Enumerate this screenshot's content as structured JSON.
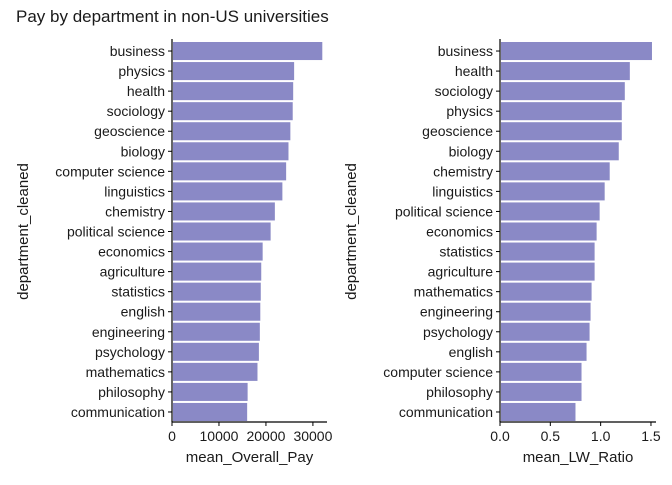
{
  "title": "Pay by department in non-US universities",
  "colors": {
    "bar": "#8A89C6",
    "axis": "#000000",
    "text": "#1a1a1a"
  },
  "chart_data": [
    {
      "type": "bar",
      "orientation": "horizontal",
      "xlabel": "mean_Overall_Pay",
      "ylabel": "department_cleaned",
      "xlim": [
        0,
        33000
      ],
      "xticks": [
        0,
        10000,
        20000,
        30000
      ],
      "xtick_labels": [
        "0",
        "10000",
        "20000",
        "30000"
      ],
      "categories": [
        "business",
        "physics",
        "health",
        "sociology",
        "geoscience",
        "biology",
        "computer science",
        "linguistics",
        "chemistry",
        "political science",
        "economics",
        "agriculture",
        "statistics",
        "english",
        "engineering",
        "psychology",
        "mathematics",
        "philosophy",
        "communication"
      ],
      "values": [
        32000,
        26000,
        25800,
        25700,
        25200,
        24800,
        24300,
        23500,
        21900,
        21000,
        19300,
        19000,
        18900,
        18800,
        18700,
        18500,
        18200,
        16100,
        16000
      ]
    },
    {
      "type": "bar",
      "orientation": "horizontal",
      "xlabel": "mean_LW_Ratio",
      "ylabel": "department_cleaned",
      "xlim": [
        0,
        1.55
      ],
      "xticks": [
        0,
        0.5,
        1.0,
        1.5
      ],
      "xtick_labels": [
        "0.0",
        "0.5",
        "1.0",
        "1.5"
      ],
      "categories": [
        "business",
        "health",
        "sociology",
        "physics",
        "geoscience",
        "biology",
        "chemistry",
        "linguistics",
        "political science",
        "economics",
        "statistics",
        "agriculture",
        "mathematics",
        "engineering",
        "psychology",
        "english",
        "computer science",
        "philosophy",
        "communication"
      ],
      "values": [
        1.51,
        1.29,
        1.24,
        1.21,
        1.21,
        1.18,
        1.09,
        1.04,
        0.99,
        0.96,
        0.94,
        0.94,
        0.91,
        0.9,
        0.89,
        0.86,
        0.81,
        0.81,
        0.75
      ]
    }
  ]
}
